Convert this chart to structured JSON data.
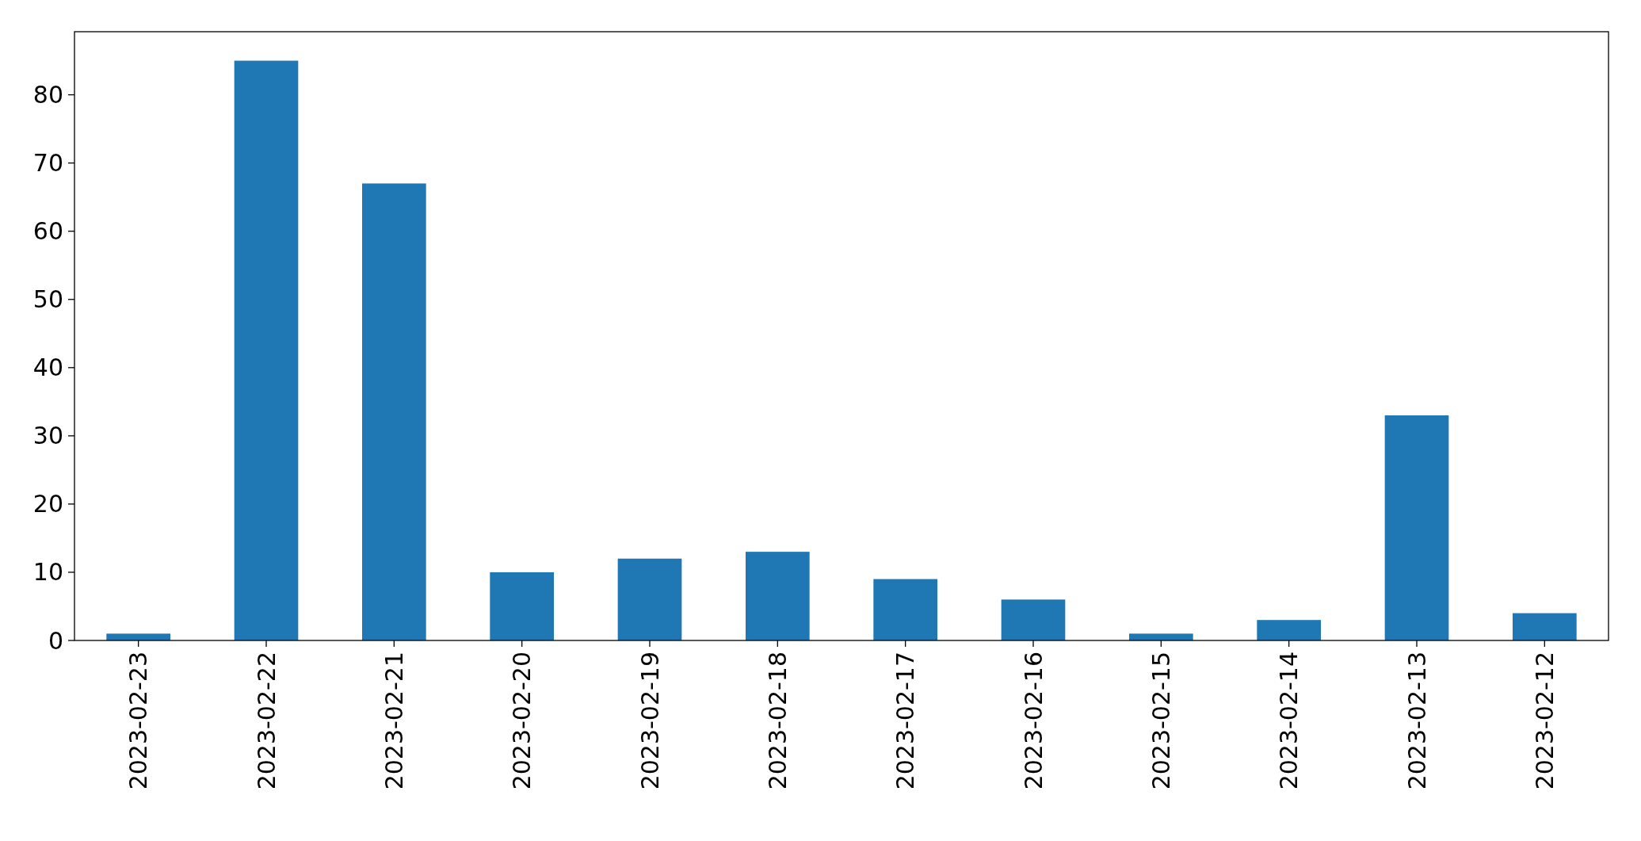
{
  "chart_data": {
    "type": "bar",
    "categories": [
      "2023-02-23",
      "2023-02-22",
      "2023-02-21",
      "2023-02-20",
      "2023-02-19",
      "2023-02-18",
      "2023-02-17",
      "2023-02-16",
      "2023-02-15",
      "2023-02-14",
      "2023-02-13",
      "2023-02-12"
    ],
    "values": [
      1,
      85,
      67,
      10,
      12,
      13,
      9,
      6,
      1,
      3,
      33,
      4
    ],
    "color": "#1f77b4",
    "ylim": [
      0,
      89.25
    ],
    "yticks": [
      0,
      10,
      20,
      30,
      40,
      50,
      60,
      70,
      80
    ]
  }
}
